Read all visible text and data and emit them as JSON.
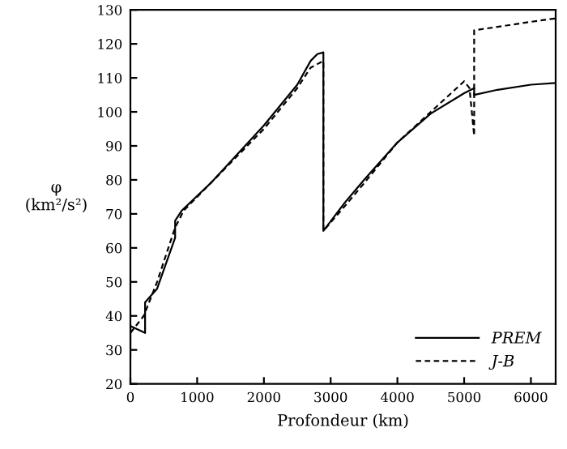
{
  "chart_data": {
    "type": "line",
    "xlabel": "Profondeur (km)",
    "ylabel": "φ\n(km²/s²)",
    "xlim": [
      0,
      6371
    ],
    "ylim": [
      20,
      130
    ],
    "xticks": [
      0,
      1000,
      2000,
      3000,
      4000,
      5000,
      6000
    ],
    "yticks": [
      20,
      30,
      40,
      50,
      60,
      70,
      80,
      90,
      100,
      110,
      120,
      130
    ],
    "grid": false,
    "legend": "bottom right",
    "series": [
      {
        "name": "PREM",
        "color": "#000000",
        "line_style": "solid",
        "x": [
          0,
          0,
          220,
          220,
          400,
          670,
          670,
          771,
          1200,
          2000,
          2500,
          2700,
          2800,
          2891,
          2891,
          3200,
          3500,
          4000,
          4500,
          5000,
          5150,
          5150,
          5500,
          6000,
          6371
        ],
        "values": [
          28,
          37,
          35,
          44,
          48,
          63,
          68,
          71,
          79,
          96,
          108,
          115,
          117,
          117.5,
          65,
          73,
          80,
          91,
          99.5,
          105.5,
          107,
          105,
          106.5,
          108,
          108.5
        ]
      },
      {
        "name": "J-B",
        "color": "#000000",
        "line_style": "dashed",
        "x": [
          0,
          200,
          400,
          670,
          800,
          1200,
          2000,
          2500,
          2700,
          2891,
          2891,
          3200,
          3500,
          4000,
          4500,
          5000,
          5080,
          5150,
          5150,
          5500,
          6000,
          6371
        ],
        "values": [
          35,
          40,
          50,
          66,
          71,
          79,
          95,
          107,
          113,
          115,
          65,
          72,
          79,
          91,
          100,
          109,
          107,
          93,
          124,
          125,
          126.5,
          127.5
        ]
      }
    ]
  }
}
